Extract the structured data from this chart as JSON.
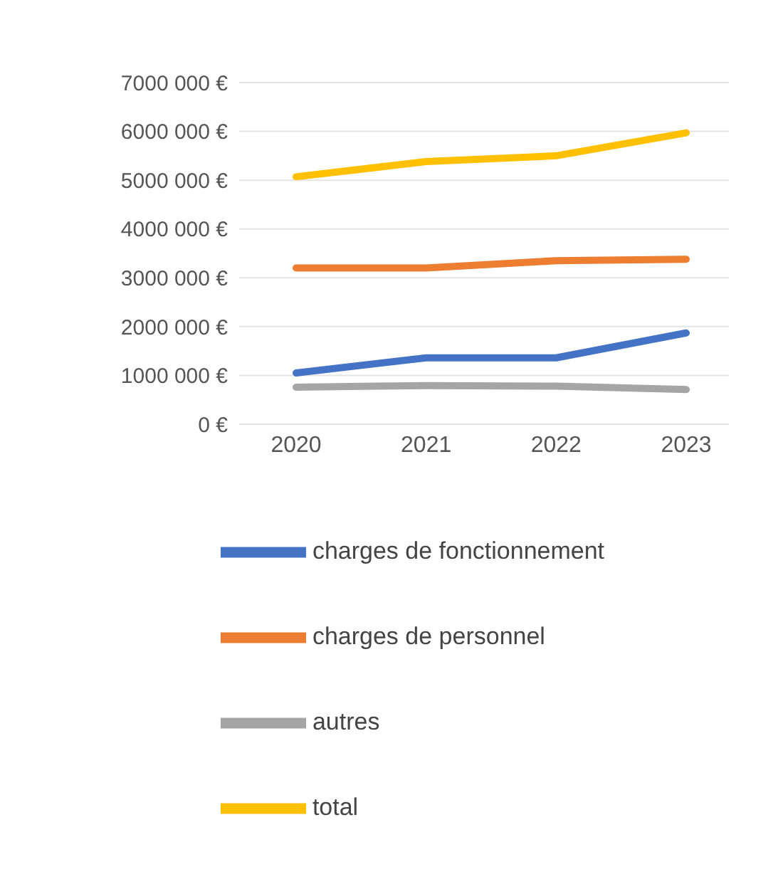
{
  "chart_data": {
    "type": "line",
    "categories": [
      "2020",
      "2021",
      "2022",
      "2023"
    ],
    "series": [
      {
        "name": "charges de fonctionnement",
        "color": "#4472c4",
        "values": [
          1050000,
          1360000,
          1360000,
          1870000
        ]
      },
      {
        "name": "charges de personnel",
        "color": "#ed7d31",
        "values": [
          3200000,
          3200000,
          3350000,
          3380000
        ]
      },
      {
        "name": "autres",
        "color": "#a5a5a5",
        "values": [
          760000,
          790000,
          780000,
          710000
        ]
      },
      {
        "name": "total",
        "color": "#ffc000",
        "values": [
          5070000,
          5380000,
          5500000,
          5970000
        ]
      }
    ],
    "ylim": [
      0,
      7000000
    ],
    "yticks": [
      {
        "value": 0,
        "label": "0 €"
      },
      {
        "value": 1000000,
        "label": "1000 000 €"
      },
      {
        "value": 2000000,
        "label": "2000 000 €"
      },
      {
        "value": 3000000,
        "label": "3000 000 €"
      },
      {
        "value": 4000000,
        "label": "4000 000 €"
      },
      {
        "value": 5000000,
        "label": "5000 000 €"
      },
      {
        "value": 6000000,
        "label": "6000 000 €"
      },
      {
        "value": 7000000,
        "label": "7000 000 €"
      }
    ],
    "grid": "y",
    "legend": "bottom",
    "marker": "none",
    "line_style": "solid"
  }
}
